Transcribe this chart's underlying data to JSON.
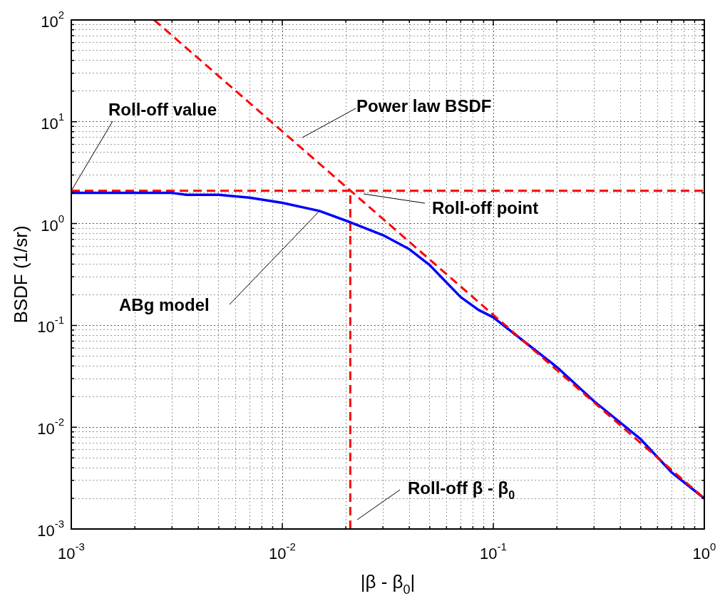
{
  "chart_data": {
    "type": "line",
    "xlabel": "|β - β$_{0}$|",
    "ylabel": "BSDF (1/sr)",
    "log": "xy",
    "grid": true,
    "marker": "none",
    "xlim": [
      0.001,
      1
    ],
    "ylim": [
      0.001,
      100
    ],
    "xticks": [
      {
        "value": 0.001,
        "label": "10$^{-3}$"
      },
      {
        "value": 0.002,
        "label": null
      },
      {
        "value": 0.003,
        "label": null
      },
      {
        "value": 0.004,
        "label": null
      },
      {
        "value": 0.005,
        "label": null
      },
      {
        "value": 0.006,
        "label": null
      },
      {
        "value": 0.007,
        "label": null
      },
      {
        "value": 0.008,
        "label": null
      },
      {
        "value": 0.009,
        "label": null
      },
      {
        "value": 0.01,
        "label": "10$^{-2}$"
      },
      {
        "value": 0.02,
        "label": null
      },
      {
        "value": 0.03,
        "label": null
      },
      {
        "value": 0.04,
        "label": null
      },
      {
        "value": 0.05,
        "label": null
      },
      {
        "value": 0.06,
        "label": null
      },
      {
        "value": 0.07,
        "label": null
      },
      {
        "value": 0.08,
        "label": null
      },
      {
        "value": 0.09,
        "label": null
      },
      {
        "value": 0.1,
        "label": "10$^{-1}$"
      },
      {
        "value": 0.2,
        "label": null
      },
      {
        "value": 0.3,
        "label": null
      },
      {
        "value": 0.4,
        "label": null
      },
      {
        "value": 0.5,
        "label": null
      },
      {
        "value": 0.6,
        "label": null
      },
      {
        "value": 0.7,
        "label": null
      },
      {
        "value": 0.8,
        "label": null
      },
      {
        "value": 0.9,
        "label": null
      },
      {
        "value": 1,
        "label": "10$^{0}$"
      }
    ],
    "yticks": [
      {
        "value": 0.001,
        "label": "10$^{-3}$"
      },
      {
        "value": 0.002,
        "label": null
      },
      {
        "value": 0.003,
        "label": null
      },
      {
        "value": 0.004,
        "label": null
      },
      {
        "value": 0.005,
        "label": null
      },
      {
        "value": 0.006,
        "label": null
      },
      {
        "value": 0.007,
        "label": null
      },
      {
        "value": 0.008,
        "label": null
      },
      {
        "value": 0.009,
        "label": null
      },
      {
        "value": 0.01,
        "label": "10$^{-2}$"
      },
      {
        "value": 0.02,
        "label": null
      },
      {
        "value": 0.03,
        "label": null
      },
      {
        "value": 0.04,
        "label": null
      },
      {
        "value": 0.05,
        "label": null
      },
      {
        "value": 0.06,
        "label": null
      },
      {
        "value": 0.07,
        "label": null
      },
      {
        "value": 0.08,
        "label": null
      },
      {
        "value": 0.09,
        "label": null
      },
      {
        "value": 0.1,
        "label": "10$^{-1}$"
      },
      {
        "value": 0.2,
        "label": null
      },
      {
        "value": 0.3,
        "label": null
      },
      {
        "value": 0.4,
        "label": null
      },
      {
        "value": 0.5,
        "label": null
      },
      {
        "value": 0.6,
        "label": null
      },
      {
        "value": 0.7,
        "label": null
      },
      {
        "value": 0.8,
        "label": null
      },
      {
        "value": 0.9,
        "label": null
      },
      {
        "value": 1,
        "label": "10$^{0}$"
      },
      {
        "value": 2,
        "label": null
      },
      {
        "value": 3,
        "label": null
      },
      {
        "value": 4,
        "label": null
      },
      {
        "value": 5,
        "label": null
      },
      {
        "value": 6,
        "label": null
      },
      {
        "value": 7,
        "label": null
      },
      {
        "value": 8,
        "label": null
      },
      {
        "value": 9,
        "label": null
      },
      {
        "value": 10,
        "label": "10$^{1}$"
      },
      {
        "value": 20,
        "label": null
      },
      {
        "value": 30,
        "label": null
      },
      {
        "value": 40,
        "label": null
      },
      {
        "value": 50,
        "label": null
      },
      {
        "value": 60,
        "label": null
      },
      {
        "value": 70,
        "label": null
      },
      {
        "value": 80,
        "label": null
      },
      {
        "value": 90,
        "label": null
      },
      {
        "value": 100,
        "label": "10$^{2}$"
      }
    ],
    "series": [
      {
        "color": "#ff0000",
        "line_style": "dashed",
        "x": [
          0.00247,
          1
        ],
        "values": [
          100,
          0.002
        ]
      },
      {
        "color": "#0000ff",
        "line_style": "solid",
        "x": [
          0.001,
          0.003,
          0.0035,
          0.005,
          0.007,
          0.01,
          0.015,
          0.021,
          0.03,
          0.04,
          0.05,
          0.07,
          0.085,
          0.1,
          0.2,
          0.3,
          0.5,
          0.7,
          1
        ],
        "values": [
          2.0,
          2.0,
          1.92,
          1.92,
          1.8,
          1.6,
          1.33,
          1.03,
          0.77,
          0.56,
          0.39,
          0.19,
          0.142,
          0.12,
          0.039,
          0.018,
          0.0076,
          0.0036,
          0.002
        ]
      },
      {
        "color": "#ff0000",
        "line_style": "dashed",
        "x": [
          0.001,
          1
        ],
        "values": [
          2.1,
          2.1
        ]
      },
      {
        "color": "#ff0000",
        "line_style": "dashed",
        "x": [
          0.021,
          0.021
        ],
        "values": [
          0.001,
          2.1
        ]
      }
    ],
    "annotations": [
      {
        "text": "Roll-off value",
        "x": 0.001,
        "y": 2.1
      },
      "Power law BSDF",
      "Roll-off point",
      {
        "text": "ABg model",
        "x": 0.015,
        "y": 1.33
      },
      "Roll-off β - β$_{0}$"
    ]
  }
}
